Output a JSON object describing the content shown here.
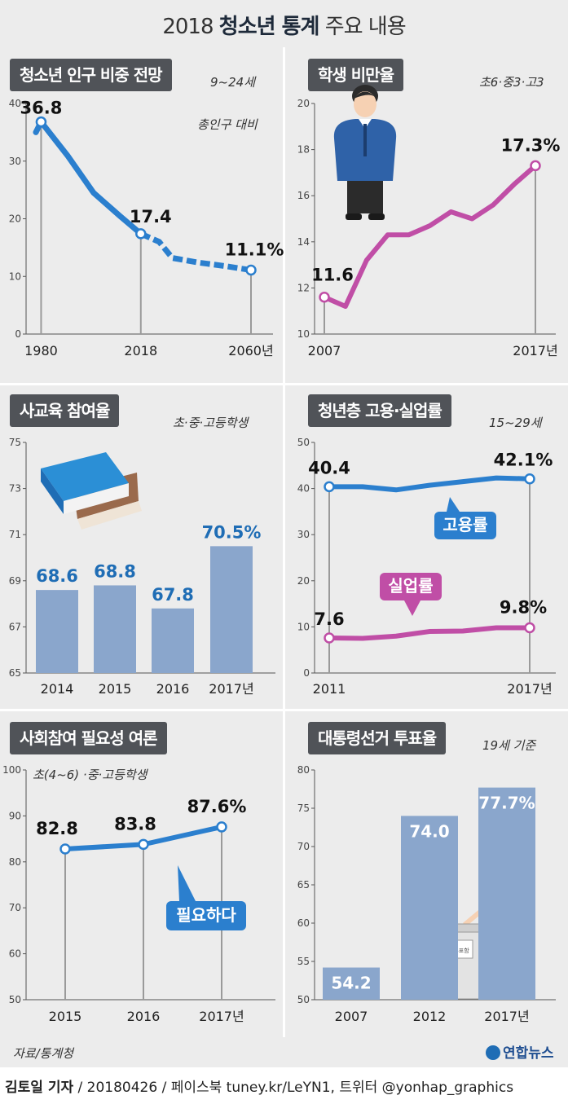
{
  "title": {
    "year": "2018",
    "bold": "청소년 통계",
    "rest": "주요 내용"
  },
  "panels": {
    "p1": {
      "title": "청소년 인구 비중 전망",
      "sub": "9~24세",
      "note": "총인구 대비"
    },
    "p2": {
      "title": "학생 비만율",
      "sub": "초6·중3·고3"
    },
    "p3": {
      "title": "사교육 참여율",
      "sub": "초·중·고등학생"
    },
    "p4": {
      "title": "청년층 고용·실업률",
      "sub": "15~29세"
    },
    "p5": {
      "title": "사회참여 필요성 여론",
      "sub": "초(4~6) ·중·고등학생"
    },
    "p6": {
      "title": "대통령선거 투표율",
      "sub": "19세 기준"
    }
  },
  "footer": {
    "source": "자료/통계청",
    "logo": "연합뉴스",
    "credit_name": "김토일 기자",
    "credit_rest": " / 20180426 / 페이스북 tuney.kr/LeYN1, 트위터 @yonhap_graphics"
  },
  "chart_data": [
    {
      "type": "line",
      "title": "청소년 인구 비중 전망",
      "subtitle": "9~24세",
      "note": "총인구 대비",
      "x_ticks": [
        "1980",
        "2018",
        "2060년"
      ],
      "ylim": [
        0,
        40
      ],
      "y_ticks": [
        0,
        10,
        20,
        30,
        40
      ],
      "series": [
        {
          "x": [
            1978,
            1980,
            1990,
            2000,
            2010,
            2018,
            2025,
            2030,
            2040,
            2050,
            2060
          ],
          "values": [
            35.0,
            36.8,
            31.0,
            24.5,
            20.5,
            17.4,
            16.0,
            13.2,
            12.4,
            11.8,
            11.1
          ],
          "projection_from": 2018
        }
      ],
      "labels": [
        {
          "x": 1980,
          "text": "36.8"
        },
        {
          "x": 2018,
          "text": "17.4"
        },
        {
          "x": 2060,
          "text": "11.1%"
        }
      ],
      "grid": false
    },
    {
      "type": "line",
      "title": "학생 비만율",
      "subtitle": "초6·중3·고3",
      "x": [
        2007,
        2008,
        2009,
        2010,
        2011,
        2012,
        2013,
        2014,
        2015,
        2016,
        2017
      ],
      "x_ticks": [
        "2007",
        "2017년"
      ],
      "ylim": [
        10,
        20
      ],
      "y_ticks": [
        10,
        12,
        14,
        16,
        18,
        20
      ],
      "series": [
        {
          "values": [
            11.6,
            11.2,
            13.2,
            14.3,
            14.3,
            14.7,
            15.3,
            15.0,
            15.6,
            16.5,
            17.3
          ]
        }
      ],
      "labels": [
        {
          "x": 2007,
          "text": "11.6"
        },
        {
          "x": 2017,
          "text": "17.3%"
        }
      ],
      "grid": false
    },
    {
      "type": "bar",
      "title": "사교육 참여율",
      "subtitle": "초·중·고등학생",
      "categories": [
        "2014",
        "2015",
        "2016",
        "2017년"
      ],
      "values": [
        68.6,
        68.8,
        67.8,
        70.5
      ],
      "value_labels": [
        "68.6",
        "68.8",
        "67.8",
        "70.5%"
      ],
      "ylim": [
        65,
        75
      ],
      "y_ticks": [
        65,
        67,
        69,
        71,
        73,
        75
      ],
      "grid": false
    },
    {
      "type": "line",
      "title": "청년층 고용·실업률",
      "subtitle": "15~29세",
      "x": [
        2011,
        2012,
        2013,
        2014,
        2015,
        2016,
        2017
      ],
      "x_ticks": [
        "2011",
        "2017년"
      ],
      "ylim": [
        0,
        50
      ],
      "y_ticks": [
        0,
        10,
        20,
        30,
        40,
        50
      ],
      "series": [
        {
          "name": "고용률",
          "values": [
            40.4,
            40.4,
            39.7,
            40.7,
            41.5,
            42.3,
            42.1
          ]
        },
        {
          "name": "실업률",
          "values": [
            7.6,
            7.5,
            8.0,
            9.0,
            9.1,
            9.8,
            9.8
          ]
        }
      ],
      "labels": [
        {
          "series": "고용률",
          "x": 2011,
          "text": "40.4"
        },
        {
          "series": "고용률",
          "x": 2017,
          "text": "42.1%"
        },
        {
          "series": "실업률",
          "x": 2011,
          "text": "7.6"
        },
        {
          "series": "실업률",
          "x": 2017,
          "text": "9.8%"
        }
      ],
      "grid": false
    },
    {
      "type": "line",
      "title": "사회참여 필요성 여론",
      "subtitle": "초(4~6) ·중·고등학생",
      "categories": [
        "2015",
        "2016",
        "2017년"
      ],
      "ylim": [
        50,
        100
      ],
      "y_ticks": [
        50,
        60,
        70,
        80,
        90,
        100
      ],
      "series": [
        {
          "name": "필요하다",
          "values": [
            82.8,
            83.8,
            87.6
          ]
        }
      ],
      "labels": [
        {
          "text": "82.8"
        },
        {
          "text": "83.8"
        },
        {
          "text": "87.6%"
        }
      ],
      "grid": false
    },
    {
      "type": "bar",
      "title": "대통령선거 투표율",
      "subtitle": "19세 기준",
      "categories": [
        "2007",
        "2012",
        "2017년"
      ],
      "values": [
        54.2,
        74.0,
        77.7
      ],
      "value_labels": [
        "54.2",
        "74.0",
        "77.7%"
      ],
      "ylim": [
        50,
        80
      ],
      "y_ticks": [
        50,
        55,
        60,
        65,
        70,
        75,
        80
      ],
      "grid": false,
      "ballot_box_label": "투표함"
    }
  ]
}
